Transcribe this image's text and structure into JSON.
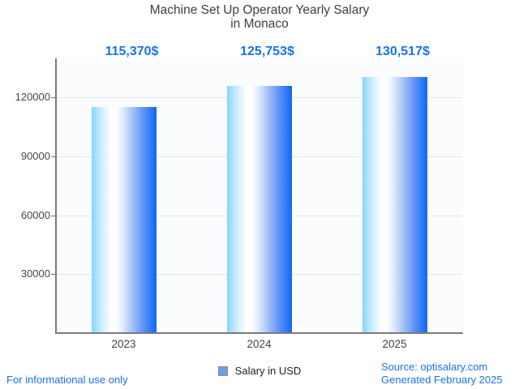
{
  "chart_data": {
    "type": "bar",
    "title": "Machine Set Up Operator Yearly Salary",
    "subtitle": "in Monaco",
    "categories": [
      "2023",
      "2024",
      "2025"
    ],
    "values": [
      115370,
      125753,
      130517
    ],
    "value_labels": [
      "115,370$",
      "125,753$",
      "130,517$"
    ],
    "series_name": "Salary in USD",
    "ylim": [
      0,
      140000
    ],
    "yticks": [
      30000,
      60000,
      90000,
      120000
    ],
    "ytick_labels": [
      "30000",
      "60000",
      "90000",
      "120000"
    ],
    "grid": true,
    "legend_position": "bottom"
  },
  "legend": {
    "label": "Salary in USD",
    "marker_color": "#6d9eeb"
  },
  "footer": {
    "disclaimer": "For informational use only",
    "source": "Source: optisalary.com",
    "generated": "Generated February 2025"
  },
  "colors": {
    "accent_blue": "#1a73e8",
    "title_text": "#3c4043",
    "axis_text": "#464646",
    "grid_line": "#e3e4e7",
    "axis_line": "#7b7b7b",
    "bar_gradient_left": "#86d4fb",
    "bar_gradient_middle": "#ffffff",
    "bar_gradient_right": "#0f67f4",
    "plot_background": "#fafcfe"
  }
}
